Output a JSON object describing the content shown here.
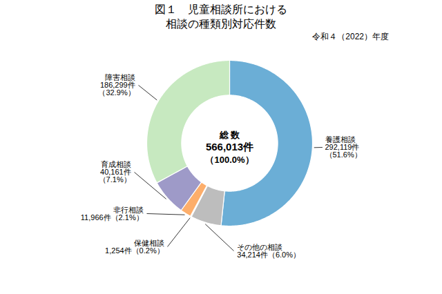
{
  "chart_data": {
    "type": "donut",
    "title": "図１　児童相談所における\n相談の種類別対応件数",
    "subtitle": "令和４（2022）年度",
    "categories": [
      "養護相談",
      "その他の相談",
      "保健相談",
      "非行相談",
      "育成相談",
      "障害相談"
    ],
    "values": [
      51.6,
      6.0,
      0.2,
      2.1,
      7.1,
      32.9
    ],
    "value_labels": [
      "292,119件\n（51.6%）",
      "34,214件（6.0%）",
      "1,254件（0.2%）",
      "11,966件（2.1%）",
      "40,161件\n（7.1%）",
      "186,299件\n（32.9%）"
    ],
    "colors": [
      "#6BAED6",
      "#BDBDBD",
      "#D9D9D9",
      "#FDAE6B",
      "#9E9AC8",
      "#C7E9C0"
    ],
    "annotations": [
      "総 数",
      "566,013件",
      "（100.0%）"
    ],
    "data_labels": true,
    "tick_labels": false
  }
}
